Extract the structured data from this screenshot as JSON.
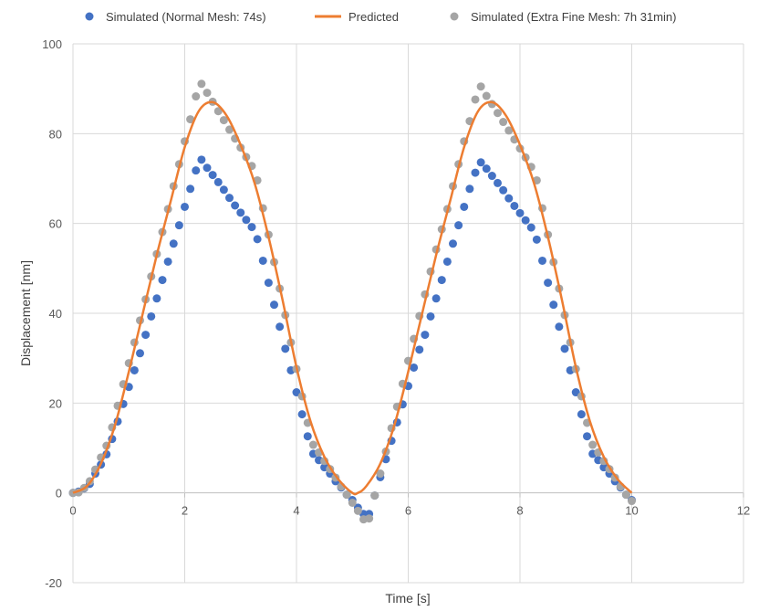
{
  "chart_data": {
    "type": "scatter",
    "title": "",
    "xlabel": "Time [s]",
    "ylabel": "Displacement [nm]",
    "xlim": [
      0,
      12
    ],
    "ylim": [
      -20,
      100
    ],
    "xticks": [
      0,
      2,
      4,
      6,
      8,
      10,
      12
    ],
    "yticks": [
      -20,
      0,
      20,
      40,
      60,
      80,
      100
    ],
    "grid": true,
    "legend_position": "top",
    "series": [
      {
        "name": "Simulated (Normal Mesh: 74s)",
        "kind": "markers",
        "color": "#4472C4",
        "x": [
          0,
          0.1,
          0.2,
          0.3,
          0.4,
          0.5,
          0.6,
          0.7,
          0.8,
          0.9,
          1.0,
          1.1,
          1.2,
          1.3,
          1.4,
          1.5,
          1.6,
          1.7,
          1.8,
          1.9,
          2.0,
          2.1,
          2.2,
          2.3,
          2.4,
          2.5,
          2.6,
          2.7,
          2.8,
          2.9,
          3.0,
          3.1,
          3.2,
          3.3,
          3.4,
          3.5,
          3.6,
          3.7,
          3.8,
          3.9,
          4.0,
          4.1,
          4.2,
          4.3,
          4.4,
          4.5,
          4.6,
          4.7,
          4.8,
          4.9,
          5.0,
          5.1,
          5.2,
          5.3,
          5.4,
          5.5,
          5.6,
          5.7,
          5.8,
          5.9,
          6.0,
          6.1,
          6.2,
          6.3,
          6.4,
          6.5,
          6.6,
          6.7,
          6.8,
          6.9,
          7.0,
          7.1,
          7.2,
          7.3,
          7.4,
          7.5,
          7.6,
          7.7,
          7.8,
          7.9,
          8.0,
          8.1,
          8.2,
          8.3,
          8.4,
          8.5,
          8.6,
          8.7,
          8.8,
          8.9,
          9.0,
          9.1,
          9.2,
          9.3,
          9.4,
          9.5,
          9.6,
          9.7,
          9.8,
          9.9,
          10.0
        ],
        "y": [
          0,
          0.3,
          1.0,
          2.0,
          4.3,
          6.3,
          8.6,
          12.0,
          15.9,
          19.8,
          23.6,
          27.3,
          31.1,
          35.2,
          39.3,
          43.3,
          47.4,
          51.5,
          55.5,
          59.6,
          63.7,
          67.7,
          71.8,
          74.2,
          72.4,
          70.8,
          69.2,
          67.5,
          65.7,
          64.0,
          62.4,
          60.8,
          59.2,
          56.5,
          51.7,
          46.8,
          41.9,
          37.0,
          32.1,
          27.3,
          22.4,
          17.5,
          12.6,
          8.7,
          7.3,
          5.7,
          4.3,
          2.6,
          1.2,
          -0.4,
          -1.6,
          -3.3,
          -4.7,
          -4.7,
          -0.6,
          3.5,
          7.5,
          11.6,
          15.7,
          19.7,
          23.8,
          27.9,
          31.9,
          35.2,
          39.3,
          43.3,
          47.4,
          51.5,
          55.5,
          59.6,
          63.7,
          67.7,
          71.3,
          73.6,
          72.2,
          70.6,
          69.0,
          67.4,
          65.6,
          63.9,
          62.3,
          60.7,
          59.1,
          56.4,
          51.7,
          46.8,
          41.9,
          37.0,
          32.1,
          27.3,
          22.4,
          17.5,
          12.6,
          8.7,
          7.3,
          5.7,
          4.3,
          2.6,
          1.2,
          -0.4,
          -1.6
        ]
      },
      {
        "name": "Predicted",
        "kind": "line",
        "color": "#ED7D31",
        "x": [
          0,
          0.25,
          0.5,
          0.75,
          1.0,
          1.25,
          1.5,
          1.75,
          2.0,
          2.25,
          2.5,
          2.75,
          3.0,
          3.25,
          3.5,
          3.75,
          4.0,
          4.25,
          4.5,
          4.75,
          5.0,
          5.1,
          5.25,
          5.5,
          5.75,
          6.0,
          6.25,
          6.5,
          6.75,
          7.0,
          7.25,
          7.5,
          7.75,
          8.0,
          8.25,
          8.5,
          8.75,
          9.0,
          9.25,
          9.5,
          9.75,
          10.0
        ],
        "y": [
          0,
          1.5,
          6.5,
          15,
          27,
          40,
          53,
          65,
          77,
          85,
          87,
          84,
          77.5,
          69,
          57,
          43,
          28,
          16,
          8,
          3,
          0,
          0,
          1.5,
          6.5,
          15,
          27,
          40,
          53,
          65,
          77,
          85,
          87,
          84,
          77.5,
          69,
          57,
          43,
          28,
          16,
          8,
          3,
          0
        ]
      },
      {
        "name": "Simulated (Extra Fine Mesh: 7h 31min)",
        "kind": "markers",
        "color": "#A5A5A5",
        "x": [
          0,
          0.1,
          0.2,
          0.3,
          0.4,
          0.5,
          0.6,
          0.7,
          0.8,
          0.9,
          1.0,
          1.1,
          1.2,
          1.3,
          1.4,
          1.5,
          1.6,
          1.7,
          1.8,
          1.9,
          2.0,
          2.1,
          2.2,
          2.3,
          2.4,
          2.5,
          2.6,
          2.7,
          2.8,
          2.9,
          3.0,
          3.1,
          3.2,
          3.3,
          3.4,
          3.5,
          3.6,
          3.7,
          3.8,
          3.9,
          4.0,
          4.1,
          4.2,
          4.3,
          4.4,
          4.5,
          4.6,
          4.7,
          4.8,
          4.9,
          5.0,
          5.1,
          5.2,
          5.3,
          5.4,
          5.5,
          5.6,
          5.7,
          5.8,
          5.9,
          6.0,
          6.1,
          6.2,
          6.3,
          6.4,
          6.5,
          6.6,
          6.7,
          6.8,
          6.9,
          7.0,
          7.1,
          7.2,
          7.3,
          7.4,
          7.5,
          7.6,
          7.7,
          7.8,
          7.9,
          8.0,
          8.1,
          8.2,
          8.3,
          8.4,
          8.5,
          8.6,
          8.7,
          8.8,
          8.9,
          9.0,
          9.1,
          9.2,
          9.3,
          9.4,
          9.5,
          9.6,
          9.7,
          9.8,
          9.9,
          10.0
        ],
        "y": [
          0,
          0.1,
          1.1,
          2.6,
          5.2,
          7.9,
          10.5,
          14.6,
          19.4,
          24.2,
          28.9,
          33.5,
          38.4,
          43.1,
          48.2,
          53.2,
          58.1,
          63.2,
          68.3,
          73.2,
          78.3,
          83.2,
          88.3,
          91.1,
          89.1,
          87.1,
          85.0,
          83.0,
          80.9,
          78.9,
          76.9,
          74.8,
          72.8,
          69.6,
          63.4,
          57.5,
          51.4,
          45.5,
          39.6,
          33.5,
          27.6,
          21.5,
          15.6,
          10.7,
          9.0,
          7.1,
          5.3,
          3.4,
          1.4,
          -0.4,
          -2.2,
          -4.0,
          -5.9,
          -5.7,
          -0.6,
          4.3,
          9.2,
          14.4,
          19.2,
          24.3,
          29.4,
          34.3,
          39.4,
          44.2,
          49.3,
          54.2,
          58.7,
          63.2,
          68.3,
          73.2,
          78.3,
          82.8,
          87.6,
          90.5,
          88.4,
          86.6,
          84.6,
          82.6,
          80.7,
          78.7,
          76.7,
          74.7,
          72.6,
          69.6,
          63.4,
          57.5,
          51.4,
          45.5,
          39.6,
          33.5,
          27.6,
          21.5,
          15.6,
          10.7,
          9.0,
          7.1,
          5.3,
          3.4,
          1.4,
          -0.4,
          -1.8
        ]
      }
    ]
  }
}
